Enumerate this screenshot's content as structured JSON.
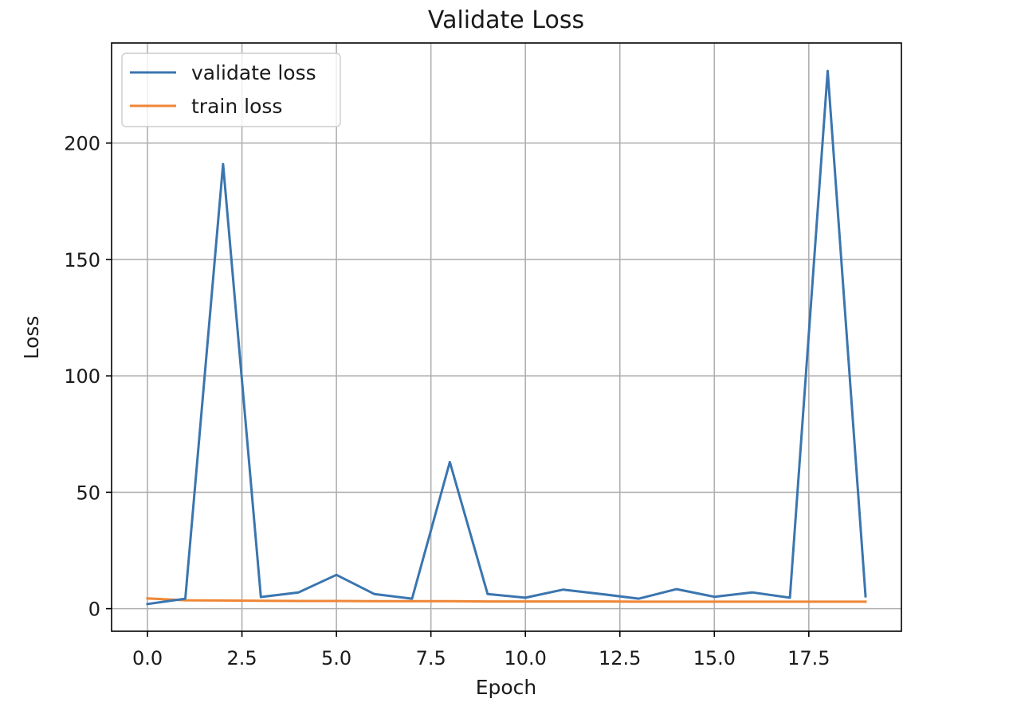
{
  "chart_data": {
    "type": "line",
    "title": "Validate Loss",
    "xlabel": "Epoch",
    "ylabel": "Loss",
    "xlim": [
      -0.95,
      19.95
    ],
    "ylim": [
      -9.7,
      243
    ],
    "xticks": [
      0.0,
      2.5,
      5.0,
      7.5,
      10.0,
      12.5,
      15.0,
      17.5
    ],
    "xtick_labels": [
      "0.0",
      "2.5",
      "5.0",
      "7.5",
      "10.0",
      "12.5",
      "15.0",
      "17.5"
    ],
    "yticks": [
      0,
      50,
      100,
      150,
      200
    ],
    "ytick_labels": [
      "0",
      "50",
      "100",
      "150",
      "200"
    ],
    "grid": true,
    "legend_position": "top-left",
    "x": [
      0,
      1,
      2,
      3,
      4,
      5,
      6,
      7,
      8,
      9,
      10,
      11,
      12,
      13,
      14,
      15,
      16,
      17,
      18,
      19
    ],
    "series": [
      {
        "name": "validate loss",
        "color": "#3b75af",
        "values": [
          2.0,
          4.3,
          191.0,
          5.0,
          7.0,
          14.5,
          6.3,
          4.3,
          63.0,
          6.3,
          4.7,
          8.2,
          6.3,
          4.3,
          8.4,
          5.1,
          7.0,
          4.7,
          231.0,
          5.3
        ]
      },
      {
        "name": "train loss",
        "color": "#ef8636",
        "values": [
          4.4,
          3.6,
          3.5,
          3.4,
          3.3,
          3.3,
          3.2,
          3.2,
          3.2,
          3.1,
          3.1,
          3.1,
          3.1,
          3.0,
          3.0,
          3.0,
          3.0,
          3.0,
          3.0,
          3.0
        ]
      }
    ]
  }
}
